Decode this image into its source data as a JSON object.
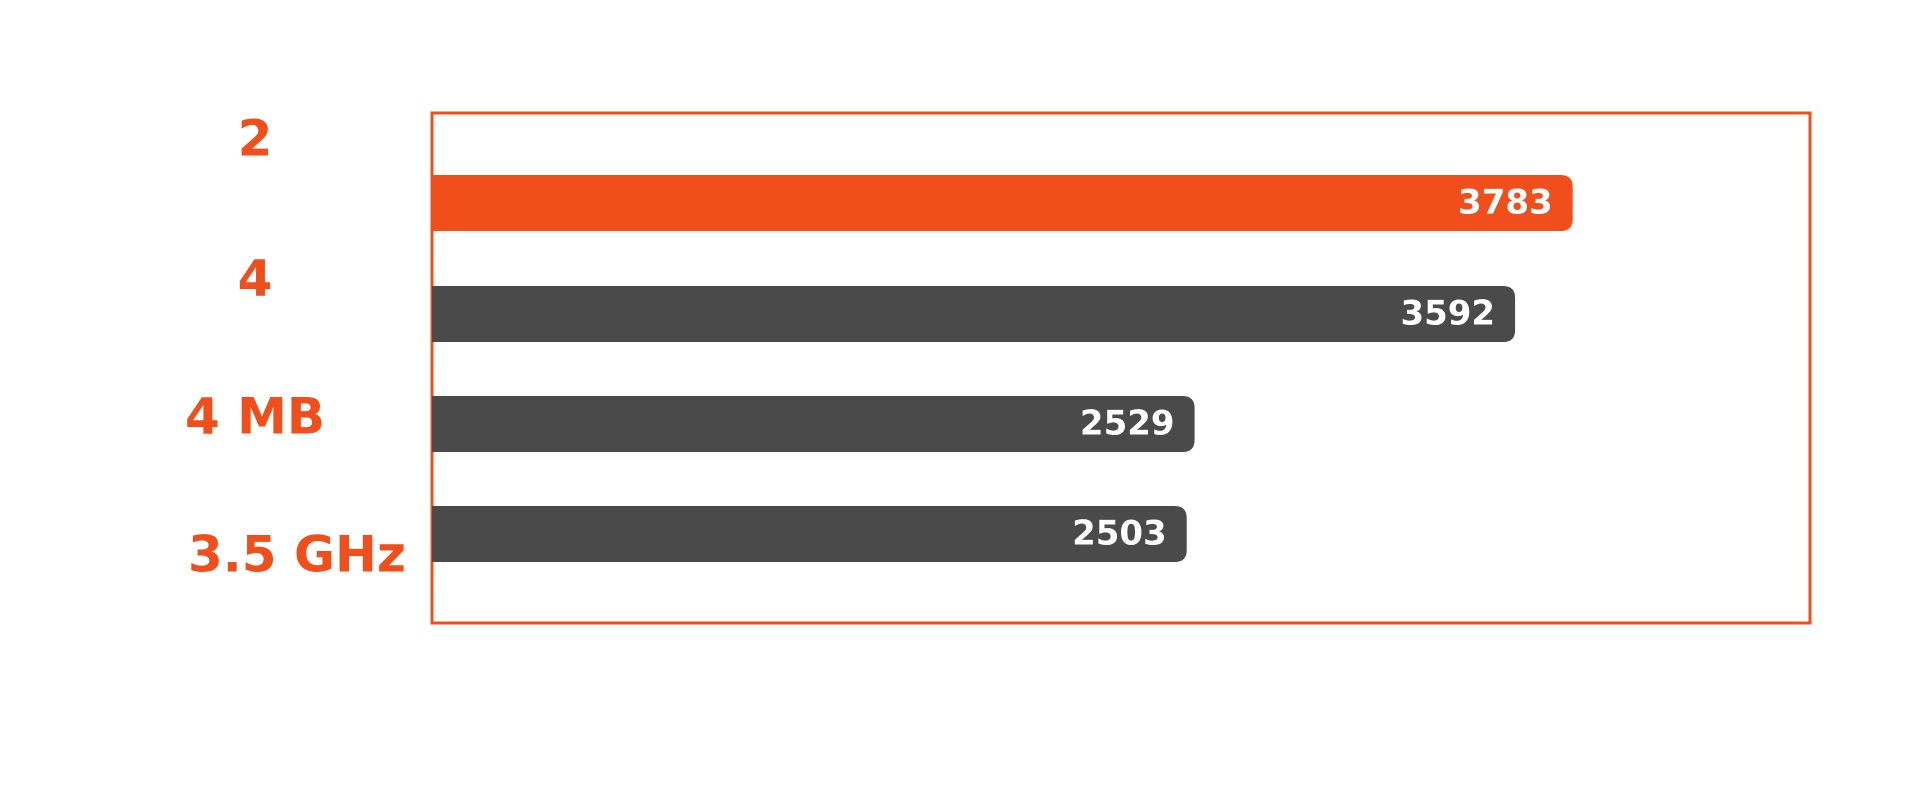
{
  "colors": {
    "accent": "#f04e1a",
    "bar_default": "#4a4a4a",
    "value_text": "#ffffff",
    "frame": "#f04e1a",
    "background": "#ffffff"
  },
  "labels": [
    "2",
    "4",
    "4 MB",
    "3.5 GHz"
  ],
  "chart_data": {
    "type": "bar",
    "orientation": "horizontal",
    "title": "",
    "xlabel": "",
    "ylabel": "",
    "values": [
      3783,
      3592,
      2529,
      2503
    ],
    "value_labels": [
      "3783",
      "3592",
      "2529",
      "2503"
    ],
    "highlight": [
      true,
      false,
      false,
      false
    ],
    "xlim": [
      0,
      4570
    ],
    "grid": false,
    "legend": "none"
  }
}
